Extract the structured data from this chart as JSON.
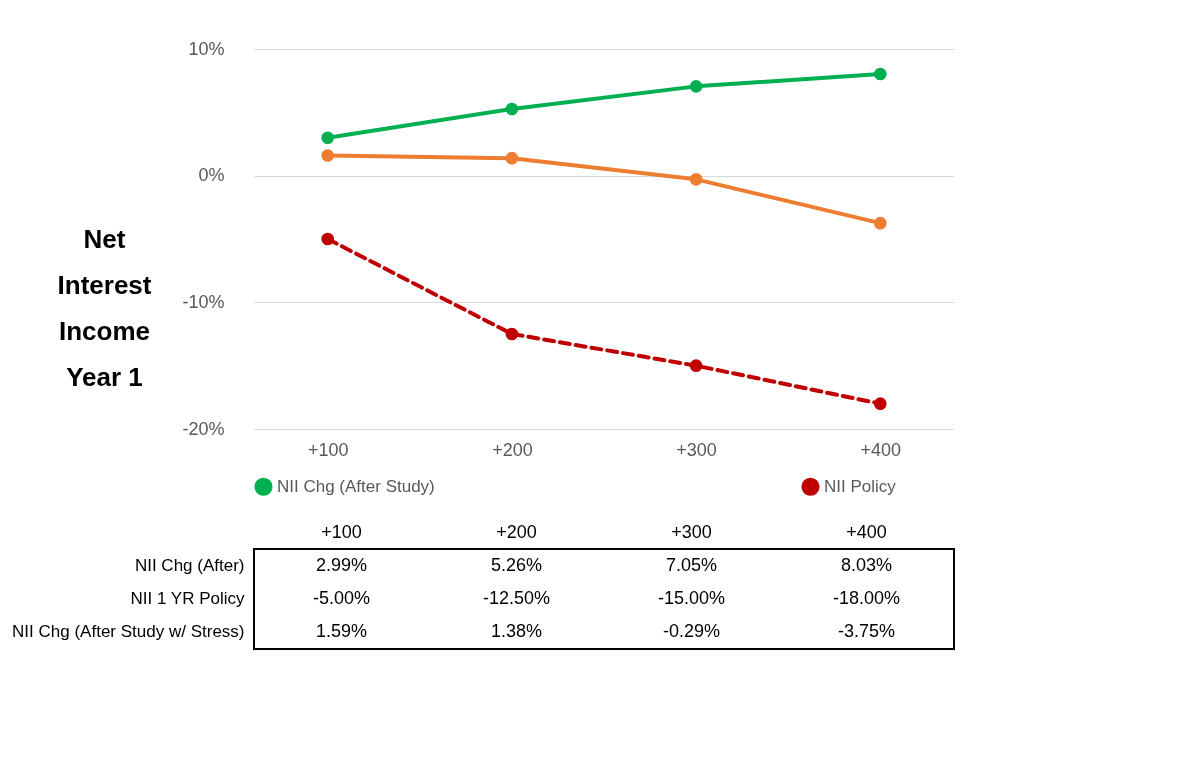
{
  "chart_data": {
    "type": "line",
    "ylabel": "Net Interest Income Year 1",
    "categories": [
      "+100",
      "+200",
      "+300",
      "+400"
    ],
    "series": [
      {
        "name": "NII Chg (After Study)",
        "color": "#00b050",
        "line_style": "solid",
        "values": [
          2.99,
          5.26,
          7.05,
          8.03
        ],
        "value_labels": [
          "2.99%",
          "5.26%",
          "7.05%",
          "8.03%"
        ]
      },
      {
        "name": "NII Policy",
        "color": "#c00000",
        "line_style": "dashed",
        "values": [
          -5.0,
          -12.5,
          -15.0,
          -18.0
        ],
        "value_labels": [
          "-5.00%",
          "-12.50%",
          "-15.00%",
          "-18.00%"
        ]
      },
      {
        "color": "#ed7d31",
        "line_style": "solid",
        "values": [
          1.59,
          1.38,
          -0.29,
          -3.75
        ],
        "value_labels": [
          "1.59%",
          "1.38%",
          "-0.29%",
          "-3.75%"
        ]
      }
    ],
    "annotations": [
      "NII Chg (After)",
      "NII 1 YR Policy",
      "NII Chg (After Study w/ Stress)"
    ],
    "ylim": [
      -20,
      10
    ],
    "yticks": [
      {
        "value": 10,
        "label": "10%"
      },
      {
        "value": 0,
        "label": "0%"
      },
      {
        "value": -10,
        "label": "-10%"
      },
      {
        "value": -20,
        "label": "-20%"
      }
    ],
    "grid": "y",
    "marker": "circle",
    "legend": "bottom"
  }
}
